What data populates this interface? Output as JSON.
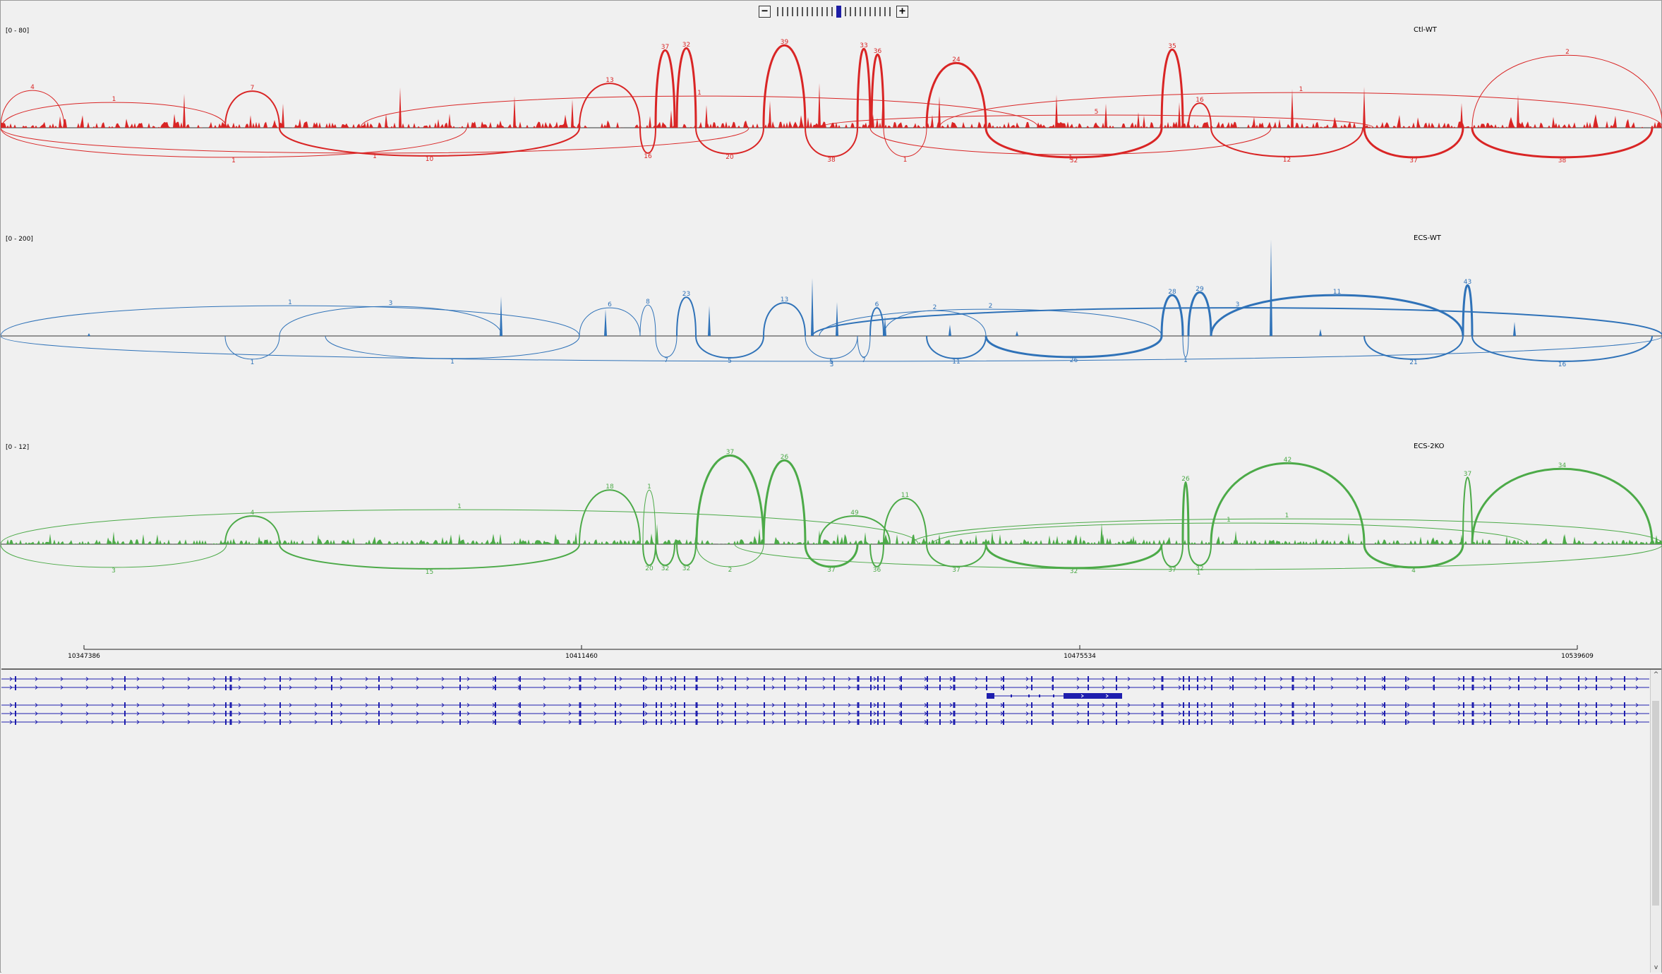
{
  "zoom": {
    "minus_icon": "minus-icon",
    "plus_icon": "plus-icon",
    "levels": 23,
    "current_level": 12
  },
  "tracks": [
    {
      "name": "Ctl-WT",
      "range_label": "[0 - 80]",
      "color": "#d92525",
      "peaks": [
        [
          260,
          48
        ],
        [
          400,
          34
        ],
        [
          566,
          57
        ],
        [
          636,
          20
        ],
        [
          728,
          45
        ],
        [
          810,
          40
        ],
        [
          950,
          25
        ],
        [
          1000,
          32
        ],
        [
          1090,
          38
        ],
        [
          1160,
          63
        ],
        [
          1250,
          54
        ],
        [
          1330,
          45
        ],
        [
          1496,
          47
        ],
        [
          1566,
          34
        ],
        [
          1612,
          22
        ],
        [
          1670,
          36
        ],
        [
          1830,
          55
        ],
        [
          1932,
          58
        ],
        [
          2070,
          35
        ],
        [
          2150,
          47
        ]
      ],
      "arcs_above": [
        {
          "x1": 318,
          "x2": 395,
          "h": 52,
          "label": "7",
          "w": 2
        },
        {
          "x1": 820,
          "x2": 906,
          "h": 63,
          "label": "13",
          "w": 2
        },
        {
          "x1": 928,
          "x2": 955,
          "h": 110,
          "label": "37",
          "w": 3
        },
        {
          "x1": 958,
          "x2": 985,
          "h": 113,
          "label": "32",
          "w": 3
        },
        {
          "x1": 1081,
          "x2": 1140,
          "h": 117,
          "label": "39",
          "w": 3
        },
        {
          "x1": 1214,
          "x2": 1232,
          "h": 112,
          "label": "33",
          "w": 3
        },
        {
          "x1": 1234,
          "x2": 1251,
          "h": 104,
          "label": "36",
          "w": 3
        },
        {
          "x1": 1312,
          "x2": 1396,
          "h": 92,
          "label": "24",
          "w": 3
        },
        {
          "x1": 1645,
          "x2": 1675,
          "h": 111,
          "label": "35",
          "w": 3
        },
        {
          "x1": 1683,
          "x2": 1715,
          "h": 35,
          "label": "16",
          "w": 2
        },
        {
          "x1": 0,
          "x2": 90,
          "h": 53,
          "label": "4",
          "w": 1
        },
        {
          "x1": 1,
          "x2": 320,
          "h": 36,
          "label": "1",
          "w": 1
        },
        {
          "x1": 510,
          "x2": 1470,
          "h": 45,
          "label": "1",
          "w": 1
        },
        {
          "x1": 1330,
          "x2": 2355,
          "h": 50,
          "label": "1",
          "w": 1
        },
        {
          "x1": 1160,
          "x2": 1945,
          "h": 18,
          "label": "5",
          "w": 1
        },
        {
          "x1": 2085,
          "x2": 2355,
          "h": 103,
          "label": "2",
          "w": 1
        }
      ],
      "arcs_below": [
        {
          "x1": 395,
          "x2": 820,
          "h": 40,
          "label": "10",
          "w": 2
        },
        {
          "x1": 1140,
          "x2": 1214,
          "h": 41,
          "label": "38",
          "w": 2
        },
        {
          "x1": 1396,
          "x2": 1645,
          "h": 42,
          "label": "32",
          "w": 3
        },
        {
          "x1": 1932,
          "x2": 2072,
          "h": 42,
          "label": "37",
          "w": 3
        },
        {
          "x1": 2085,
          "x2": 2340,
          "h": 42,
          "label": "38",
          "w": 3
        },
        {
          "x1": 906,
          "x2": 928,
          "h": 36,
          "label": "16",
          "w": 2
        },
        {
          "x1": 0,
          "x2": 660,
          "h": 42,
          "label": "1",
          "w": 1
        },
        {
          "x1": 0,
          "x2": 1060,
          "h": 36,
          "label": "1",
          "w": 1
        },
        {
          "x1": 985,
          "x2": 1081,
          "h": 37,
          "label": "20",
          "w": 2
        },
        {
          "x1": 1715,
          "x2": 1930,
          "h": 41,
          "label": "12",
          "w": 2
        },
        {
          "x1": 1251,
          "x2": 1312,
          "h": 41,
          "label": "1",
          "w": 1
        },
        {
          "x1": 1232,
          "x2": 1800,
          "h": 38,
          "label": "1",
          "w": 1
        }
      ]
    },
    {
      "name": "ECS-WT",
      "range_label": "[0 - 200]",
      "color": "#2f72b8",
      "peaks": [
        [
          125,
          4
        ],
        [
          709,
          56
        ],
        [
          857,
          38
        ],
        [
          1004,
          43
        ],
        [
          1150,
          82
        ],
        [
          1185,
          48
        ],
        [
          1253,
          28
        ],
        [
          1345,
          16
        ],
        [
          1440,
          7
        ],
        [
          1800,
          137
        ],
        [
          1870,
          10
        ],
        [
          2145,
          20
        ]
      ],
      "arcs_above": [
        {
          "x1": 820,
          "x2": 906,
          "h": 40,
          "label": "6",
          "w": 1
        },
        {
          "x1": 906,
          "x2": 928,
          "h": 44,
          "label": "8",
          "w": 1
        },
        {
          "x1": 958,
          "x2": 985,
          "h": 55,
          "label": "23",
          "w": 2
        },
        {
          "x1": 1081,
          "x2": 1140,
          "h": 47,
          "label": "13",
          "w": 2
        },
        {
          "x1": 1232,
          "x2": 1251,
          "h": 40,
          "label": "6",
          "w": 2
        },
        {
          "x1": 1645,
          "x2": 1675,
          "h": 58,
          "label": "28",
          "w": 3
        },
        {
          "x1": 1683,
          "x2": 1715,
          "h": 62,
          "label": "29",
          "w": 3
        },
        {
          "x1": 1715,
          "x2": 2072,
          "h": 58,
          "label": "11",
          "w": 3
        },
        {
          "x1": 2072,
          "x2": 2085,
          "h": 72,
          "label": "43",
          "w": 3
        },
        {
          "x1": 395,
          "x2": 710,
          "h": 42,
          "label": "3",
          "w": 1
        },
        {
          "x1": 0,
          "x2": 820,
          "h": 43,
          "label": "1",
          "w": 1
        },
        {
          "x1": 1150,
          "x2": 2355,
          "h": 40,
          "label": "3",
          "w": 2
        },
        {
          "x1": 1160,
          "x2": 1645,
          "h": 38,
          "label": "2",
          "w": 1
        },
        {
          "x1": 1251,
          "x2": 1396,
          "h": 36,
          "label": "2",
          "w": 1
        }
      ],
      "arcs_below": [
        {
          "x1": 318,
          "x2": 395,
          "h": 33,
          "label": "1",
          "w": 1
        },
        {
          "x1": 460,
          "x2": 820,
          "h": 32,
          "label": "1",
          "w": 1
        },
        {
          "x1": 928,
          "x2": 958,
          "h": 30,
          "label": "7",
          "w": 1
        },
        {
          "x1": 985,
          "x2": 1081,
          "h": 31,
          "label": "5",
          "w": 2
        },
        {
          "x1": 1140,
          "x2": 1214,
          "h": 32,
          "label": "5",
          "w": 1
        },
        {
          "x1": 1214,
          "x2": 1232,
          "h": 30,
          "label": "7",
          "w": 1
        },
        {
          "x1": 1312,
          "x2": 1396,
          "h": 32,
          "label": "11",
          "w": 2
        },
        {
          "x1": 1396,
          "x2": 1645,
          "h": 30,
          "label": "26",
          "w": 3
        },
        {
          "x1": 1932,
          "x2": 2072,
          "h": 33,
          "label": "21",
          "w": 2
        },
        {
          "x1": 2085,
          "x2": 2340,
          "h": 36,
          "label": "16",
          "w": 2
        },
        {
          "x1": 0,
          "x2": 2355,
          "h": 36,
          "label": "3",
          "w": 1
        },
        {
          "x1": 1675,
          "x2": 1683,
          "h": 30,
          "label": "1",
          "w": 1
        }
      ]
    },
    {
      "name": "ECS-2KO",
      "range_label": "[0 - 12]",
      "color": "#4caa48",
      "peaks": [
        [
          70,
          15
        ],
        [
          160,
          18
        ],
        [
          450,
          14
        ],
        [
          650,
          15
        ],
        [
          815,
          17
        ],
        [
          930,
          29
        ],
        [
          985,
          15
        ],
        [
          1075,
          22
        ],
        [
          1160,
          20
        ],
        [
          1225,
          17
        ],
        [
          1330,
          12
        ],
        [
          1405,
          18
        ],
        [
          1497,
          12
        ],
        [
          1560,
          30
        ],
        [
          1605,
          12
        ],
        [
          1750,
          19
        ],
        [
          1910,
          16
        ],
        [
          2070,
          14
        ],
        [
          2215,
          13
        ]
      ],
      "arcs_above": [
        {
          "x1": 318,
          "x2": 395,
          "h": 40,
          "label": "4",
          "w": 2
        },
        {
          "x1": 820,
          "x2": 906,
          "h": 77,
          "label": "18",
          "w": 2
        },
        {
          "x1": 910,
          "x2": 928,
          "h": 77,
          "label": "1",
          "w": 1
        },
        {
          "x1": 986,
          "x2": 1081,
          "h": 126,
          "label": "37",
          "w": 3
        },
        {
          "x1": 1081,
          "x2": 1140,
          "h": 119,
          "label": "26",
          "w": 3
        },
        {
          "x1": 1251,
          "x2": 1312,
          "h": 65,
          "label": "11",
          "w": 2
        },
        {
          "x1": 1675,
          "x2": 1683,
          "h": 88,
          "label": "26",
          "w": 3
        },
        {
          "x1": 1715,
          "x2": 1932,
          "h": 115,
          "label": "42",
          "w": 3
        },
        {
          "x1": 2072,
          "x2": 2085,
          "h": 95,
          "label": "37",
          "w": 2
        },
        {
          "x1": 2085,
          "x2": 2340,
          "h": 107,
          "label": "34",
          "w": 3
        },
        {
          "x1": 0,
          "x2": 1300,
          "h": 49,
          "label": "1",
          "w": 1
        },
        {
          "x1": 1160,
          "x2": 1260,
          "h": 40,
          "label": "49",
          "w": 2
        },
        {
          "x1": 1290,
          "x2": 2355,
          "h": 36,
          "label": "1",
          "w": 1
        },
        {
          "x1": 1320,
          "x2": 2160,
          "h": 30,
          "label": "1",
          "w": 1
        }
      ],
      "arcs_below": [
        {
          "x1": 395,
          "x2": 820,
          "h": 35,
          "label": "15",
          "w": 2
        },
        {
          "x1": 910,
          "x2": 928,
          "h": 30,
          "label": "20",
          "w": 2
        },
        {
          "x1": 928,
          "x2": 955,
          "h": 30,
          "label": "32",
          "w": 2
        },
        {
          "x1": 958,
          "x2": 985,
          "h": 30,
          "label": "32",
          "w": 2
        },
        {
          "x1": 986,
          "x2": 1081,
          "h": 32,
          "label": "2",
          "w": 1
        },
        {
          "x1": 1140,
          "x2": 1214,
          "h": 32,
          "label": "37",
          "w": 3
        },
        {
          "x1": 1232,
          "x2": 1251,
          "h": 32,
          "label": "36",
          "w": 2
        },
        {
          "x1": 1312,
          "x2": 1396,
          "h": 32,
          "label": "37",
          "w": 2
        },
        {
          "x1": 1396,
          "x2": 1645,
          "h": 34,
          "label": "32",
          "w": 3
        },
        {
          "x1": 1645,
          "x2": 1675,
          "h": 32,
          "label": "37",
          "w": 2
        },
        {
          "x1": 1683,
          "x2": 1715,
          "h": 30,
          "label": "32",
          "w": 2
        },
        {
          "x1": 1932,
          "x2": 2072,
          "h": 33,
          "label": "4",
          "w": 3
        },
        {
          "x1": 0,
          "x2": 320,
          "h": 33,
          "label": "3",
          "w": 1
        },
        {
          "x1": 1040,
          "x2": 2355,
          "h": 36,
          "label": "1",
          "w": 1
        }
      ]
    }
  ],
  "ruler": {
    "ticks": [
      {
        "label": "10347386",
        "x": 118
      },
      {
        "label": "10411460",
        "x": 823
      },
      {
        "label": "10475534",
        "x": 1529
      },
      {
        "label": "10539609",
        "x": 2234
      }
    ]
  },
  "gene": {
    "color": "#1e1eae",
    "exon_positions": [
      20,
      175,
      318,
      325,
      395,
      468,
      535,
      650,
      700,
      735,
      820,
      870,
      910,
      928,
      935,
      955,
      968,
      985,
      1015,
      1040,
      1081,
      1110,
      1140,
      1180,
      1214,
      1232,
      1242,
      1251,
      1275,
      1312,
      1330,
      1350,
      1396,
      1420,
      1460,
      1490,
      1540,
      1580,
      1645,
      1675,
      1683,
      1695,
      1715,
      1745,
      1790,
      1830,
      1860,
      1932,
      1960,
      1990,
      2030,
      2072,
      2085,
      2110,
      2150,
      2190,
      2235,
      2260,
      2300
    ],
    "transcripts": [
      {
        "full": true
      },
      {
        "full": true
      },
      {
        "full": false
      },
      {
        "full": true
      },
      {
        "full": true
      },
      {
        "full": true
      }
    ]
  }
}
